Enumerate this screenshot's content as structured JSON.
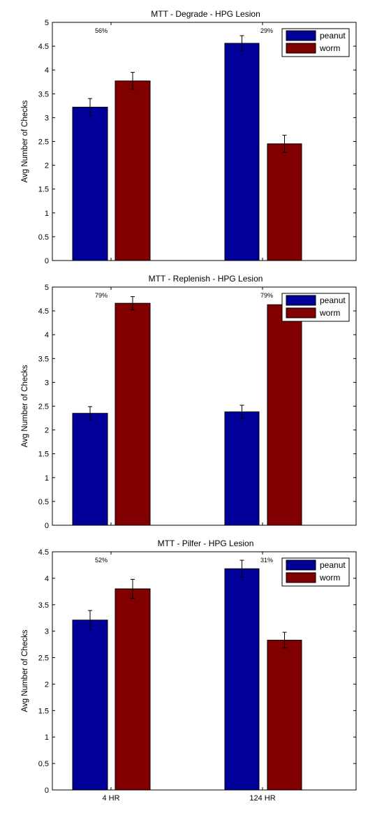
{
  "chart_data": [
    {
      "type": "bar",
      "title": "MTT - Degrade - HPG Lesion",
      "xlabel": "",
      "ylabel": "Avg Number of Checks",
      "categories": [
        "",
        ""
      ],
      "ylim": [
        0,
        5
      ],
      "yticks": [
        0,
        0.5,
        1,
        1.5,
        2,
        2.5,
        3,
        3.5,
        4,
        4.5,
        5
      ],
      "ytick_labels": [
        "0",
        "0.5",
        "1",
        "1.5",
        "2",
        "2.5",
        "3",
        "3.5",
        "4",
        "4.5",
        "5"
      ],
      "series": [
        {
          "name": "peanut",
          "color": "#000099",
          "values": [
            3.22,
            4.56
          ],
          "errors": [
            0.18,
            0.16
          ]
        },
        {
          "name": "worm",
          "color": "#800000",
          "values": [
            3.77,
            2.45
          ],
          "errors": [
            0.18,
            0.18
          ]
        }
      ],
      "annotations": [
        "56%",
        "29%"
      ],
      "legend": "top-right",
      "grid": false
    },
    {
      "type": "bar",
      "title": "MTT - Replenish - HPG Lesion",
      "xlabel": "",
      "ylabel": "Avg Number of Checks",
      "categories": [
        "",
        ""
      ],
      "ylim": [
        0,
        5
      ],
      "yticks": [
        0,
        0.5,
        1,
        1.5,
        2,
        2.5,
        3,
        3.5,
        4,
        4.5,
        5
      ],
      "ytick_labels": [
        "0",
        "0.5",
        "1",
        "1.5",
        "2",
        "2.5",
        "3",
        "3.5",
        "4",
        "4.5",
        "5"
      ],
      "series": [
        {
          "name": "peanut",
          "color": "#000099",
          "values": [
            2.35,
            2.38
          ],
          "errors": [
            0.14,
            0.14
          ]
        },
        {
          "name": "worm",
          "color": "#800000",
          "values": [
            4.66,
            4.63
          ],
          "errors": [
            0.14,
            0.14
          ]
        }
      ],
      "annotations": [
        "79%",
        "79%"
      ],
      "legend": "top-right",
      "grid": false
    },
    {
      "type": "bar",
      "title": "MTT - Pilfer - HPG Lesion",
      "xlabel": "",
      "ylabel": "Avg Number of Checks",
      "categories": [
        "4 HR",
        "124 HR"
      ],
      "ylim": [
        0,
        4.5
      ],
      "yticks": [
        0,
        0.5,
        1,
        1.5,
        2,
        2.5,
        3,
        3.5,
        4,
        4.5
      ],
      "ytick_labels": [
        "0",
        "0.5",
        "1",
        "1.5",
        "2",
        "2.5",
        "3",
        "3.5",
        "4",
        "4.5"
      ],
      "series": [
        {
          "name": "peanut",
          "color": "#000099",
          "values": [
            3.21,
            4.18
          ],
          "errors": [
            0.18,
            0.16
          ]
        },
        {
          "name": "worm",
          "color": "#800000",
          "values": [
            3.8,
            2.83
          ],
          "errors": [
            0.18,
            0.15
          ]
        }
      ],
      "annotations": [
        "52%",
        "31%"
      ],
      "legend": "top-right",
      "grid": false
    }
  ]
}
